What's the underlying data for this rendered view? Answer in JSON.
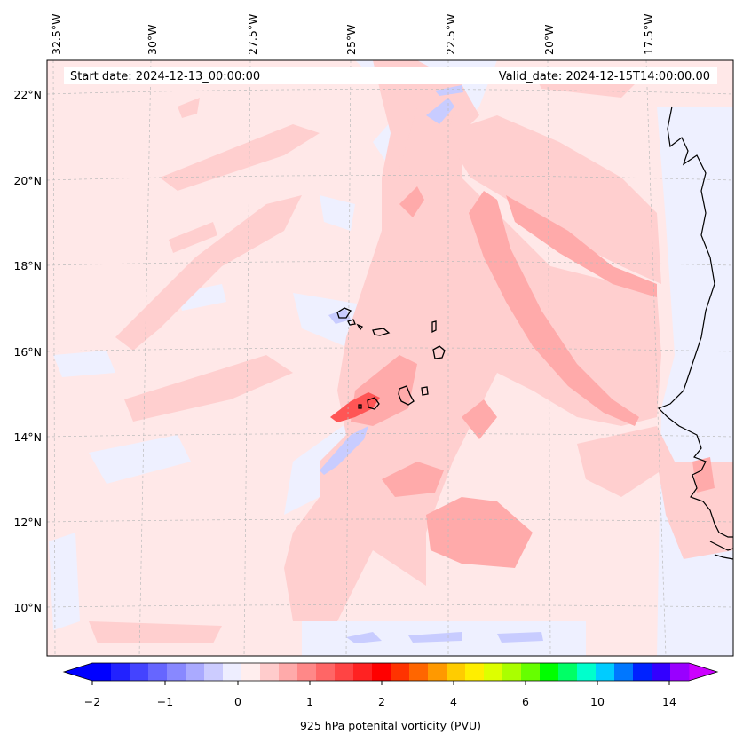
{
  "header": {
    "start_date": "Start date: 2024-12-13_00:00:00",
    "valid_date": "Valid_date: 2024-12-15T14:00:00.00"
  },
  "axes": {
    "lon_labels": [
      "32.5°W",
      "30°W",
      "27.5°W",
      "25°W",
      "22.5°W",
      "20°W",
      "17.5°W"
    ],
    "lat_labels": [
      "22°N",
      "20°N",
      "18°N",
      "16°N",
      "14°N",
      "12°N",
      "10°N"
    ]
  },
  "colorbar": {
    "label": "925 hPa potenital vorticity (PVU)",
    "tick_labels": [
      "−2",
      "−1",
      "0",
      "1",
      "2",
      "4",
      "6",
      "10",
      "14"
    ],
    "colors": [
      "#0000ff",
      "#2222ff",
      "#4444ff",
      "#6666ff",
      "#8888ff",
      "#aaaaff",
      "#ccccff",
      "#eeeeff",
      "#ffeeee",
      "#ffcccc",
      "#ffaaaa",
      "#ff8888",
      "#ff6666",
      "#ff4444",
      "#ff2222",
      "#ff0000",
      "#ff3300",
      "#ff6600",
      "#ff9900",
      "#ffcc00",
      "#ffee00",
      "#ddff00",
      "#aaff00",
      "#66ff00",
      "#00ff00",
      "#00ff66",
      "#00ffcc",
      "#00ccff",
      "#0077ff",
      "#0022ff",
      "#3300ff",
      "#9900ff"
    ],
    "min_color": "#0000ff",
    "max_color": "#cc00ff"
  },
  "colors": {
    "background_pv": "#ffe8e8",
    "light_pink": "#ffcfcf",
    "mid_pink": "#ffaaaa",
    "strong_red": "#ff5555",
    "light_blue": "#eef0ff",
    "mid_blue": "#c8ccff",
    "coastline": "#000000"
  }
}
